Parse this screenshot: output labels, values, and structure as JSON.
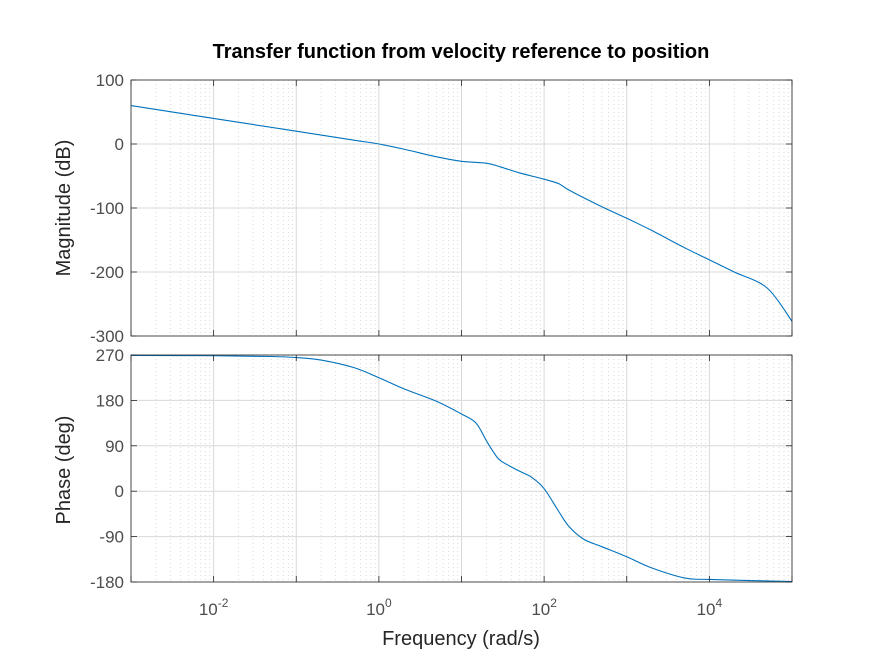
{
  "chart_data": {
    "type": "line",
    "title": "Transfer function from velocity reference to position",
    "xlabel": "Frequency  (rad/s)",
    "x_scale": "log",
    "xlim": [
      0.001,
      100000
    ],
    "x_ticks": [
      {
        "value": 0.01,
        "base": "10",
        "exp": "-2"
      },
      {
        "value": 1,
        "base": "10",
        "exp": "0"
      },
      {
        "value": 100,
        "base": "10",
        "exp": "2"
      },
      {
        "value": 10000,
        "base": "10",
        "exp": "4"
      }
    ],
    "grid": true,
    "line_color": "#0072BD",
    "subplots": [
      {
        "name": "magnitude",
        "ylabel": "Magnitude (dB)",
        "ylim": [
          -300,
          100
        ],
        "y_ticks": [
          "100",
          "0",
          "-100",
          "-200",
          "-300"
        ],
        "y_tick_values": [
          100,
          0,
          -100,
          -200,
          -300
        ],
        "x": [
          0.001,
          0.01,
          0.1,
          0.5,
          1,
          2,
          5,
          10,
          20,
          30,
          50,
          100,
          150,
          200,
          500,
          1000,
          2000,
          5000,
          10000,
          20000,
          50000,
          100000
        ],
        "y": [
          60,
          40,
          20,
          6,
          0,
          -8,
          -20,
          -27,
          -30,
          -36,
          -45,
          -55,
          -62,
          -72,
          -98,
          -116,
          -135,
          -162,
          -181,
          -200,
          -225,
          -277
        ]
      },
      {
        "name": "phase",
        "ylabel": "Phase (deg)",
        "ylim": [
          -180,
          270
        ],
        "y_ticks": [
          "270",
          "180",
          "90",
          "0",
          "-90",
          "-180"
        ],
        "y_tick_values": [
          270,
          180,
          90,
          0,
          -90,
          -180
        ],
        "x": [
          0.001,
          0.01,
          0.05,
          0.1,
          0.2,
          0.5,
          1,
          2,
          5,
          10,
          15,
          20,
          25,
          30,
          50,
          70,
          100,
          150,
          200,
          300,
          500,
          1000,
          2000,
          5000,
          10000,
          100000
        ],
        "y": [
          269,
          268.5,
          267,
          265,
          260,
          245,
          225,
          203,
          178,
          153,
          135,
          100,
          75,
          60,
          40,
          28,
          5,
          -40,
          -70,
          -95,
          -110,
          -130,
          -152,
          -172,
          -175,
          -179
        ]
      }
    ]
  }
}
